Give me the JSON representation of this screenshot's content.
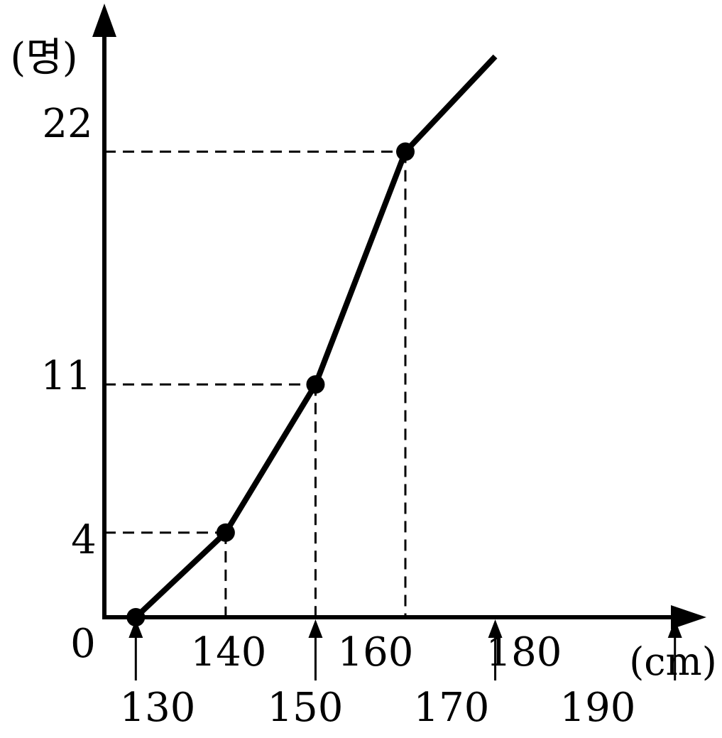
{
  "chart_data": {
    "type": "line",
    "title": "",
    "ylabel": "(명)",
    "xlabel": "(cm)",
    "origin_label": "0",
    "x_ticks_top": [
      "140",
      "160",
      "180"
    ],
    "x_ticks_bottom": [
      "130",
      "150",
      "170",
      "190"
    ],
    "y_ticks": [
      "4",
      "11",
      "22"
    ],
    "xlim": [
      126.5,
      193.5
    ],
    "ylim": [
      0,
      29
    ],
    "series": [
      {
        "points": [
          {
            "x": 130,
            "y": 0
          },
          {
            "x": 140,
            "y": 4
          },
          {
            "x": 150,
            "y": 11
          },
          {
            "x": 160,
            "y": 22
          }
        ],
        "continuation_to": {
          "x": 170,
          "y": 26.5
        }
      }
    ],
    "guides": [
      {
        "x": 140,
        "y": 4
      },
      {
        "x": 150,
        "y": 11
      },
      {
        "x": 160,
        "y": 22
      }
    ],
    "arrow_marks_at_x": [
      130,
      150,
      170,
      190
    ],
    "grid": false,
    "colors": {
      "line": "#000000",
      "background": "#ffffff"
    }
  }
}
